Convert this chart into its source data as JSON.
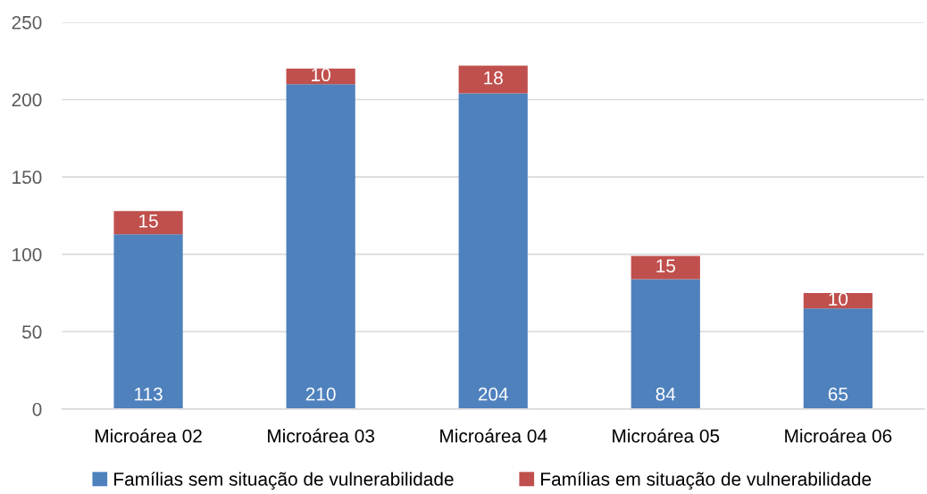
{
  "chart_data": {
    "type": "bar",
    "stacked": true,
    "categories": [
      "Microárea 02",
      "Microárea 03",
      "Microárea 04",
      "Microárea 05",
      "Microárea 06"
    ],
    "series": [
      {
        "name": "Famílias sem situação de vulnerabilidade",
        "color": "#4f81bd",
        "values": [
          113,
          210,
          204,
          84,
          65
        ]
      },
      {
        "name": "Famílias em situação de vulnerabilidade",
        "color": "#c0504d",
        "values": [
          15,
          10,
          18,
          15,
          10
        ]
      }
    ],
    "ylim": [
      0,
      250
    ],
    "yticks": [
      0,
      50,
      100,
      150,
      200,
      250
    ],
    "grid": "y",
    "legend": "bottom",
    "data_labels": true
  }
}
